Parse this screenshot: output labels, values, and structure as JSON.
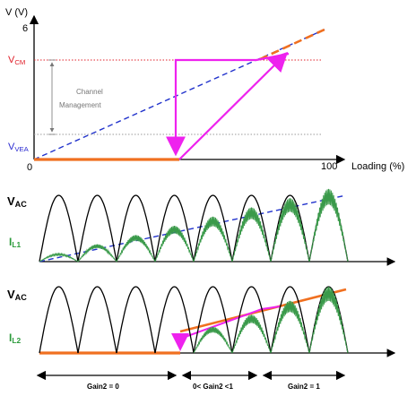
{
  "top_chart": {
    "y_axis_label": "V (V)",
    "y_top_tick": "6",
    "vcm_main": "V",
    "vcm_sub": "CM",
    "vvea_main": "V",
    "vvea_sub": "VEA",
    "origin": "0",
    "x_end_tick": "100",
    "x_axis_label": "Loading (%)",
    "band_label_line1": "Channel",
    "band_label_line2": "Management"
  },
  "waveform_1": {
    "vac_main": "V",
    "vac_sub": "AC",
    "il_main": "I",
    "il_sub": "L1"
  },
  "waveform_2": {
    "vac_main": "V",
    "vac_sub": "AC",
    "il_main": "I",
    "il_sub": "L2"
  },
  "regions": [
    {
      "label": "Gain2 = 0"
    },
    {
      "label": "0< Gain2 <1"
    },
    {
      "label": "Gain2 = 1"
    }
  ],
  "colors": {
    "orange": "#f07020",
    "blue_dashed": "#2233cc",
    "magenta": "#ee22ee",
    "red_dotted": "#e0202a",
    "green_ripple": "#3a9a4a",
    "gray": "#999999"
  }
}
